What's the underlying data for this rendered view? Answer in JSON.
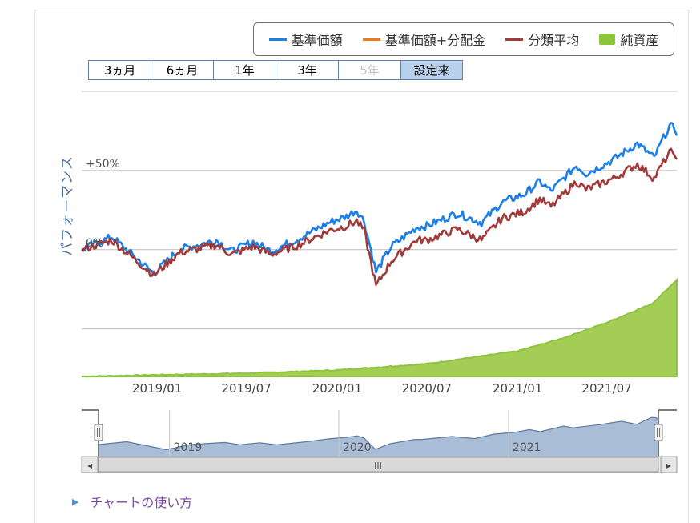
{
  "legend": [
    {
      "label": "基準価額",
      "color": "#1a7fe8",
      "kind": "line"
    },
    {
      "label": "基準価額+分配金",
      "color": "#f07a1a",
      "kind": "line"
    },
    {
      "label": "分類平均",
      "color": "#a23a3a",
      "kind": "line"
    },
    {
      "label": "純資産",
      "color": "#8cc43c",
      "kind": "area"
    }
  ],
  "range_buttons": [
    {
      "label": "3ヵ月",
      "state": "normal"
    },
    {
      "label": "6ヵ月",
      "state": "normal"
    },
    {
      "label": "1年",
      "state": "normal"
    },
    {
      "label": "3年",
      "state": "normal"
    },
    {
      "label": "5年",
      "state": "disabled"
    },
    {
      "label": "設定来",
      "state": "active"
    }
  ],
  "chart_data": {
    "type": "line",
    "ylabel": "パフォーマンス",
    "ylim": [
      -80,
      102
    ],
    "y_ticks": [
      {
        "value": 50,
        "label": "+50%"
      },
      {
        "value": 0,
        "label": "0%"
      }
    ],
    "y_gridlines": [
      100,
      50,
      0,
      -50
    ],
    "x_range": [
      "2018-08-01",
      "2021-11-20"
    ],
    "x_ticks": [
      "2019/01",
      "2019/07",
      "2020/01",
      "2020/07",
      "2021/01",
      "2021/07"
    ],
    "series": [
      {
        "name": "基準価額",
        "color": "#1a7fe8",
        "points": [
          [
            "2018-08-01",
            0
          ],
          [
            "2018-10-01",
            8
          ],
          [
            "2018-12-25",
            -15
          ],
          [
            "2019-02-15",
            0
          ],
          [
            "2019-05-01",
            6
          ],
          [
            "2019-06-01",
            -1
          ],
          [
            "2019-07-15",
            5
          ],
          [
            "2019-08-20",
            -1
          ],
          [
            "2019-10-15",
            7
          ],
          [
            "2019-12-15",
            17
          ],
          [
            "2020-01-20",
            21
          ],
          [
            "2020-02-10",
            25
          ],
          [
            "2020-02-25",
            18
          ],
          [
            "2020-03-20",
            -14
          ],
          [
            "2020-04-20",
            2
          ],
          [
            "2020-06-10",
            14
          ],
          [
            "2020-07-01",
            15
          ],
          [
            "2020-09-01",
            23
          ],
          [
            "2020-10-20",
            17
          ],
          [
            "2020-12-01",
            30
          ],
          [
            "2021-01-15",
            35
          ],
          [
            "2021-02-15",
            43
          ],
          [
            "2021-03-10",
            37
          ],
          [
            "2021-04-30",
            53
          ],
          [
            "2021-05-20",
            48
          ],
          [
            "2021-07-15",
            57
          ],
          [
            "2021-09-01",
            67
          ],
          [
            "2021-10-05",
            58
          ],
          [
            "2021-10-20",
            68
          ],
          [
            "2021-11-05",
            78
          ],
          [
            "2021-11-15",
            77
          ],
          [
            "2021-11-20",
            72
          ]
        ]
      },
      {
        "name": "分類平均",
        "color": "#a23a3a",
        "points": [
          [
            "2018-08-01",
            0
          ],
          [
            "2018-10-01",
            6
          ],
          [
            "2018-12-25",
            -16
          ],
          [
            "2019-02-15",
            -2
          ],
          [
            "2019-05-01",
            3
          ],
          [
            "2019-06-01",
            -3
          ],
          [
            "2019-07-15",
            2
          ],
          [
            "2019-08-20",
            -3
          ],
          [
            "2019-10-15",
            3
          ],
          [
            "2019-12-15",
            12
          ],
          [
            "2020-01-20",
            15
          ],
          [
            "2020-02-10",
            18
          ],
          [
            "2020-02-25",
            12
          ],
          [
            "2020-03-20",
            -23
          ],
          [
            "2020-04-20",
            -7
          ],
          [
            "2020-06-10",
            6
          ],
          [
            "2020-07-01",
            6
          ],
          [
            "2020-09-01",
            13
          ],
          [
            "2020-10-20",
            6
          ],
          [
            "2020-12-01",
            20
          ],
          [
            "2021-01-15",
            24
          ],
          [
            "2021-02-15",
            32
          ],
          [
            "2021-03-10",
            27
          ],
          [
            "2021-04-30",
            43
          ],
          [
            "2021-05-20",
            38
          ],
          [
            "2021-07-15",
            45
          ],
          [
            "2021-09-01",
            54
          ],
          [
            "2021-10-05",
            45
          ],
          [
            "2021-10-20",
            53
          ],
          [
            "2021-11-05",
            61
          ],
          [
            "2021-11-15",
            62
          ],
          [
            "2021-11-20",
            57
          ]
        ]
      },
      {
        "name": "純資産",
        "color": "#8cc43c",
        "fill": "#a4cd55",
        "kind": "area",
        "points": [
          [
            "2018-08-01",
            -80
          ],
          [
            "2019-01-01",
            -79
          ],
          [
            "2019-07-01",
            -78
          ],
          [
            "2020-01-01",
            -76
          ],
          [
            "2020-07-01",
            -72
          ],
          [
            "2021-01-01",
            -64
          ],
          [
            "2021-04-01",
            -56
          ],
          [
            "2021-07-01",
            -46
          ],
          [
            "2021-10-01",
            -34
          ],
          [
            "2021-11-10",
            -22
          ],
          [
            "2021-11-20",
            -19
          ]
        ]
      }
    ]
  },
  "navigator": {
    "year_labels": [
      "2019",
      "2020",
      "2021"
    ],
    "scroll_grip": "III",
    "left_arrow": "◂",
    "right_arrow": "▸"
  },
  "footer": {
    "link_label": "チャートの使い方"
  }
}
